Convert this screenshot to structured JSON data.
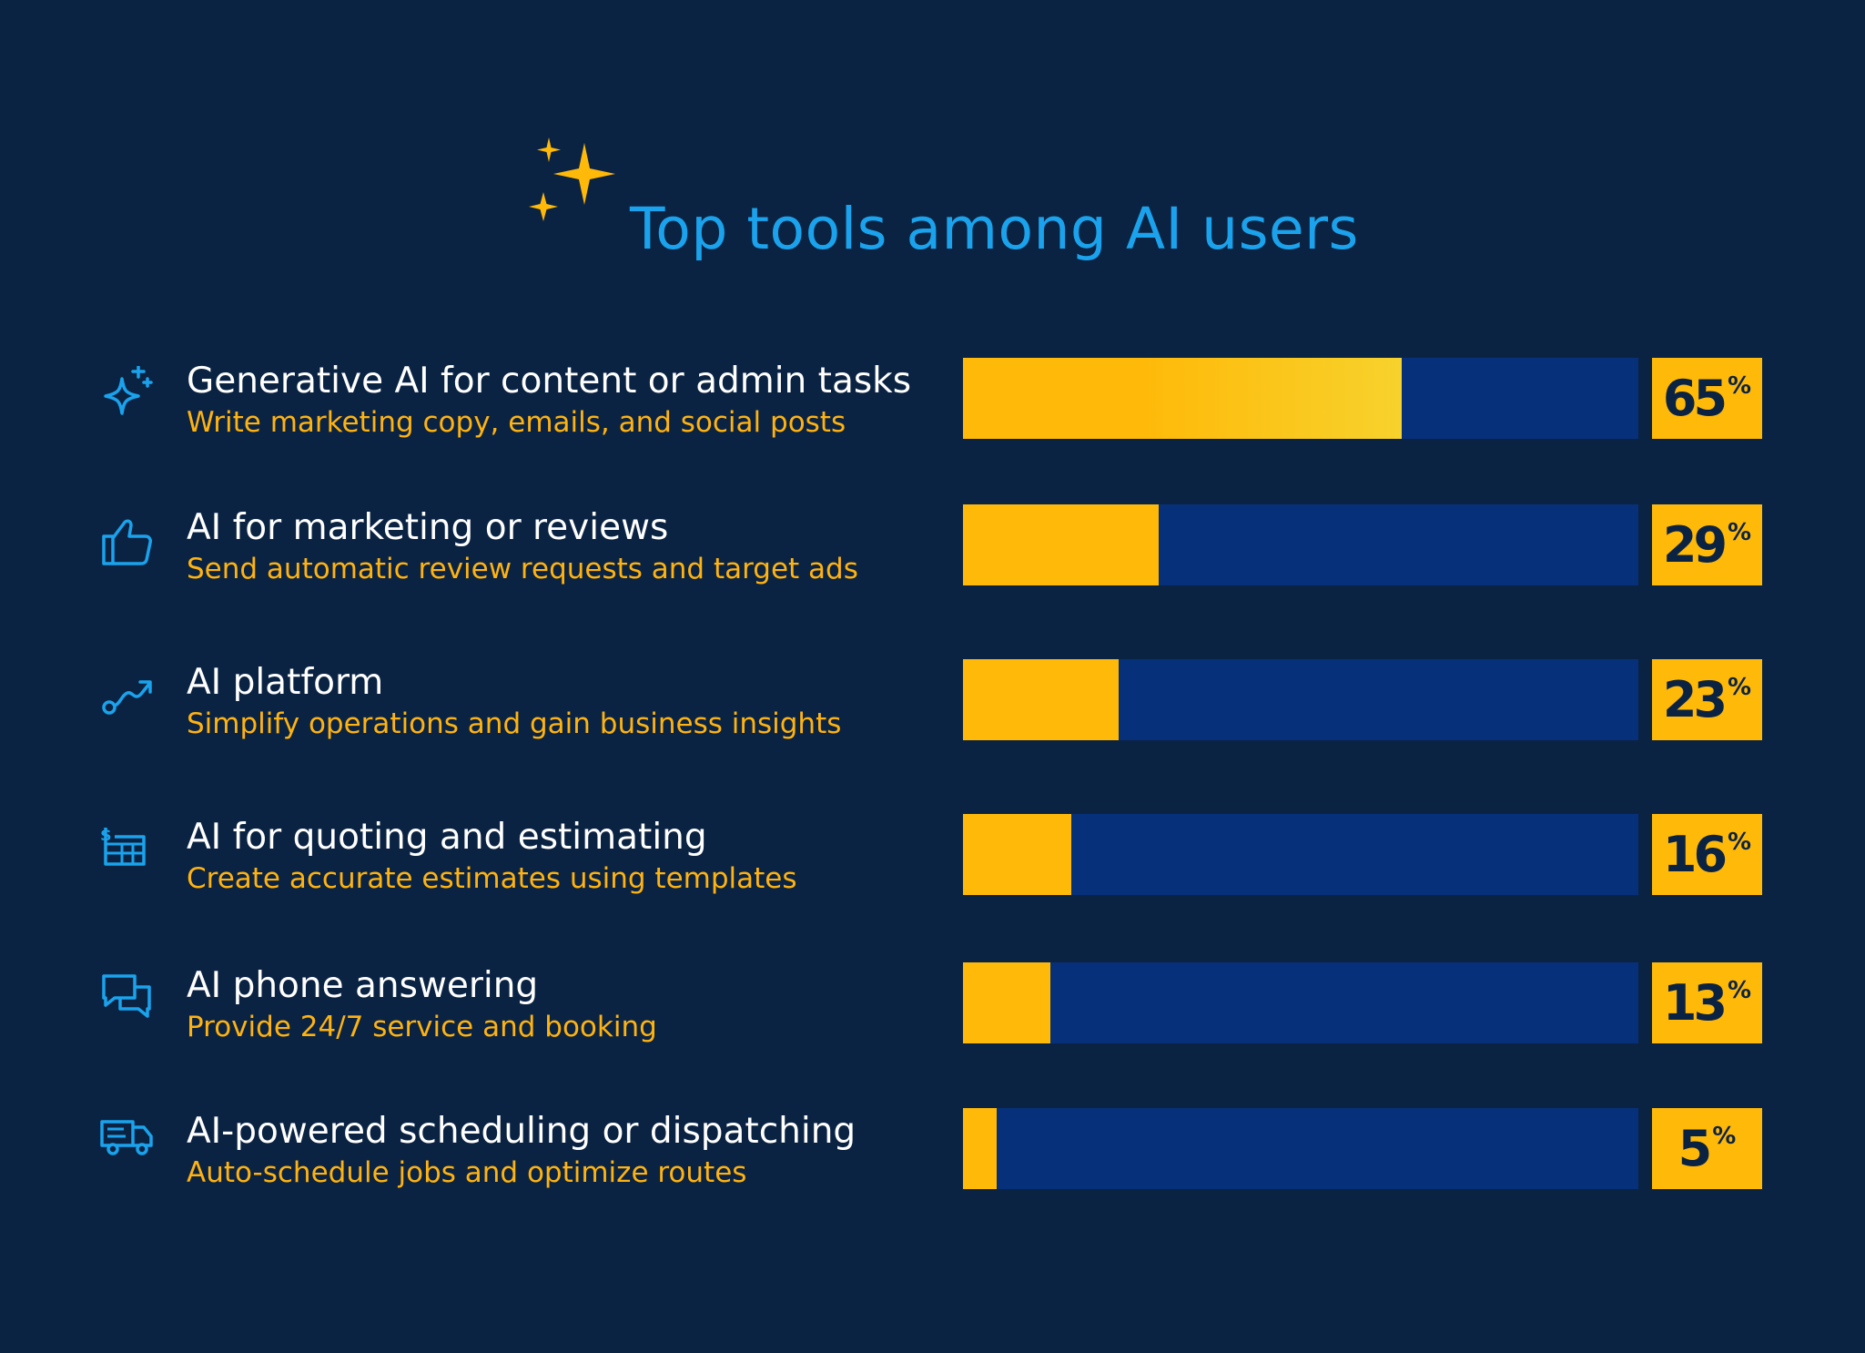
{
  "title": "Top tools among AI users",
  "colors": {
    "background": "#0b2343",
    "title": "#1aa3ec",
    "bar_fill": "#ffb908",
    "bar_track": "#06307a",
    "subtitle": "#ffb30f"
  },
  "rows": [
    {
      "label": "Generative AI for content or admin tasks",
      "sub": "Write marketing copy, emails, and social posts",
      "value": "65",
      "unit": "%",
      "icon": "sparkle-icon"
    },
    {
      "label": "AI for marketing or reviews",
      "sub": "Send automatic review requests and target ads",
      "value": "29",
      "unit": "%",
      "icon": "thumbs-up-icon"
    },
    {
      "label": "AI platform",
      "sub": "Simplify operations and gain business insights",
      "value": "23",
      "unit": "%",
      "icon": "route-icon"
    },
    {
      "label": "AI for quoting and estimating",
      "sub": "Create accurate estimates using templates",
      "value": "16",
      "unit": "%",
      "icon": "estimate-icon"
    },
    {
      "label": "AI phone answering",
      "sub": "Provide 24/7 service and booking",
      "value": "13",
      "unit": "%",
      "icon": "chat-icon"
    },
    {
      "label": "AI-powered scheduling or dispatching",
      "sub": "Auto-schedule jobs and optimize routes",
      "value": "5",
      "unit": "%",
      "icon": "truck-icon"
    }
  ],
  "chart_data": {
    "type": "bar",
    "title": "Top tools among AI users",
    "categories": [
      "Generative AI for content or admin tasks",
      "AI for marketing or reviews",
      "AI platform",
      "AI for quoting and estimating",
      "AI phone answering",
      "AI-powered scheduling or dispatching"
    ],
    "values": [
      65,
      29,
      23,
      16,
      13,
      5
    ],
    "unit": "%",
    "orientation": "horizontal",
    "xlim": [
      0,
      100
    ],
    "grid": false
  }
}
